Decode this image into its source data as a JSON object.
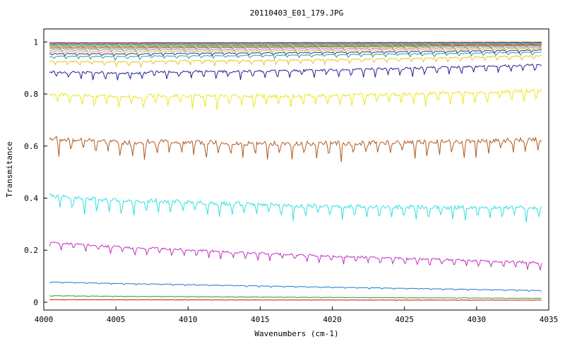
{
  "chart_data": {
    "type": "line",
    "title": "20110403_E01_179.JPG",
    "xlabel": "Wavenumbers (cm-1)",
    "ylabel": "Transmitance",
    "xlim": [
      4000,
      4035
    ],
    "ylim": [
      -0.03,
      1.05
    ],
    "xticks": [
      4000,
      4005,
      4010,
      4015,
      4020,
      4025,
      4030,
      4035
    ],
    "xtick_labels": [
      "4000",
      "4005",
      "4010",
      "4015",
      "4020",
      "4025",
      "4030",
      "4035"
    ],
    "yticks": [
      0,
      0.2,
      0.4,
      0.6,
      0.8,
      1
    ],
    "ytick_labels": [
      "0",
      "0.2",
      "0.4",
      "0.6",
      "0.8",
      "1"
    ],
    "grid": false,
    "legend": "none",
    "x_range": [
      4000.4,
      4034.5
    ],
    "series": [
      {
        "color": "#d01010",
        "start": 0.01,
        "end": 0.008,
        "depth": 0.001
      },
      {
        "color": "#20a020",
        "start": 0.025,
        "end": 0.015,
        "depth": 0.002
      },
      {
        "color": "#1f77d0",
        "start": 0.078,
        "end": 0.045,
        "depth": 0.004
      },
      {
        "color": "#c030c0",
        "start": 0.23,
        "end": 0.15,
        "depth": 0.025
      },
      {
        "color": "#30e0e0",
        "start": 0.41,
        "end": 0.36,
        "depth": 0.045
      },
      {
        "color": "#b05a20",
        "start": 0.63,
        "end": 0.62,
        "depth": 0.05
      },
      {
        "color": "#e8e820",
        "start": 0.8,
        "end": 0.81,
        "depth": 0.04
      },
      {
        "color": "#202090",
        "start": 0.885,
        "end": 0.91,
        "depth": 0.025
      },
      {
        "color": "#f0c020",
        "start": 0.925,
        "end": 0.945,
        "depth": 0.015
      },
      {
        "color": "#20a0a0",
        "start": 0.945,
        "end": 0.96,
        "depth": 0.01
      },
      {
        "color": "#303090",
        "start": 0.955,
        "end": 0.968,
        "depth": 0.008
      },
      {
        "color": "#c0c020",
        "start": 0.963,
        "end": 0.975,
        "depth": 0.006
      },
      {
        "color": "#e060e0",
        "start": 0.97,
        "end": 0.98,
        "depth": 0.005
      },
      {
        "color": "#40c040",
        "start": 0.976,
        "end": 0.985,
        "depth": 0.004
      },
      {
        "color": "#b05a20",
        "start": 0.98,
        "end": 0.988,
        "depth": 0.003
      },
      {
        "color": "#e06060",
        "start": 0.985,
        "end": 0.99,
        "depth": 0.003
      },
      {
        "color": "#20a020",
        "start": 0.989,
        "end": 0.993,
        "depth": 0.002
      },
      {
        "color": "#30e0e0",
        "start": 0.992,
        "end": 0.995,
        "depth": 0.002
      },
      {
        "color": "#1f77d0",
        "start": 0.995,
        "end": 0.997,
        "depth": 0.001
      },
      {
        "color": "#d01010",
        "start": 0.997,
        "end": 0.999,
        "depth": 0.001
      }
    ]
  }
}
